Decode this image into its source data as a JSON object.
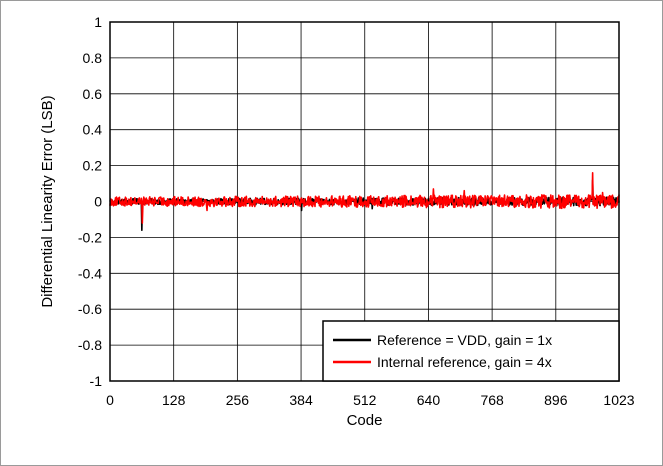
{
  "chart_data": {
    "type": "line",
    "title": "",
    "xlabel": "Code",
    "ylabel": "Differential Linearity Error (LSB)",
    "xlim": [
      0,
      1023
    ],
    "ylim": [
      -1,
      1
    ],
    "xticks": [
      0,
      128,
      256,
      384,
      512,
      640,
      768,
      896,
      1023
    ],
    "yticks": [
      1,
      0.8,
      0.6,
      0.4,
      0.2,
      0,
      -0.2,
      -0.4,
      -0.6,
      -0.8,
      -1
    ],
    "ytick_labels": [
      "1",
      "0.8",
      "0.6",
      "0.4",
      "0.2",
      "0",
      "-0.2",
      "-0.4",
      "-0.6",
      "-0.8",
      "-1"
    ],
    "grid": true,
    "legend_position": "bottom-right",
    "series": [
      {
        "name": "Reference = VDD, gain = 1x",
        "color": "#000000",
        "baseline": 0,
        "noise_amplitude": 0.015,
        "spikes": [
          {
            "x": 64,
            "y": -0.16
          },
          {
            "x": 385,
            "y": -0.05
          },
          {
            "x": 527,
            "y": -0.04
          },
          {
            "x": 970,
            "y": 0.12
          }
        ]
      },
      {
        "name": "Internal reference, gain = 4x",
        "color": "#ff0000",
        "baseline": 0,
        "noise_amplitude": 0.025,
        "spikes": [
          {
            "x": 65,
            "y": -0.12
          },
          {
            "x": 195,
            "y": -0.05
          },
          {
            "x": 650,
            "y": 0.07
          },
          {
            "x": 712,
            "y": 0.06
          },
          {
            "x": 970,
            "y": 0.16
          },
          {
            "x": 990,
            "y": 0.05
          }
        ]
      }
    ]
  }
}
